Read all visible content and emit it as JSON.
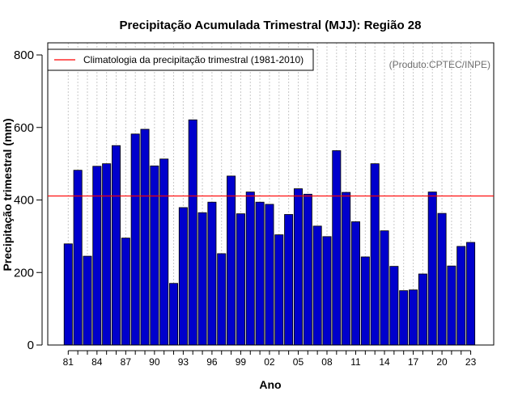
{
  "chart_data": {
    "type": "bar",
    "title": "Precipitação Acumulada Trimestral (MJJ): Região 28",
    "xlabel": "Ano",
    "ylabel": "Precipitação trimestral (mm)",
    "ylim": [
      0,
      800
    ],
    "yticks": [
      0,
      200,
      400,
      600,
      800
    ],
    "grid": "vertical dotted",
    "credit": "(Produto:CPTEC/INPE)",
    "legend": {
      "position": "top-left",
      "label": "Climatologia da precipitação trimestral (1981-2010)"
    },
    "climatology": {
      "value": 411,
      "color": "#ff0000"
    },
    "bar_color": "#0000cc",
    "years": [
      1981,
      1982,
      1983,
      1984,
      1985,
      1986,
      1987,
      1988,
      1989,
      1990,
      1991,
      1992,
      1993,
      1994,
      1995,
      1996,
      1997,
      1998,
      1999,
      2000,
      2001,
      2002,
      2003,
      2004,
      2005,
      2006,
      2007,
      2008,
      2009,
      2010,
      2011,
      2012,
      2013,
      2014,
      2015,
      2016,
      2017,
      2018,
      2019,
      2020,
      2021,
      2022,
      2023
    ],
    "x_tick_labels": [
      "81",
      "84",
      "87",
      "90",
      "93",
      "96",
      "99",
      "02",
      "05",
      "08",
      "11",
      "14",
      "17",
      "20",
      "23"
    ],
    "values": [
      279,
      482,
      245,
      493,
      500,
      550,
      295,
      582,
      595,
      494,
      513,
      170,
      379,
      621,
      365,
      394,
      252,
      466,
      362,
      422,
      394,
      388,
      304,
      360,
      431,
      416,
      328,
      299,
      536,
      421,
      340,
      243,
      500,
      315,
      217,
      150,
      152,
      196,
      422,
      363,
      218,
      272,
      283
    ]
  }
}
